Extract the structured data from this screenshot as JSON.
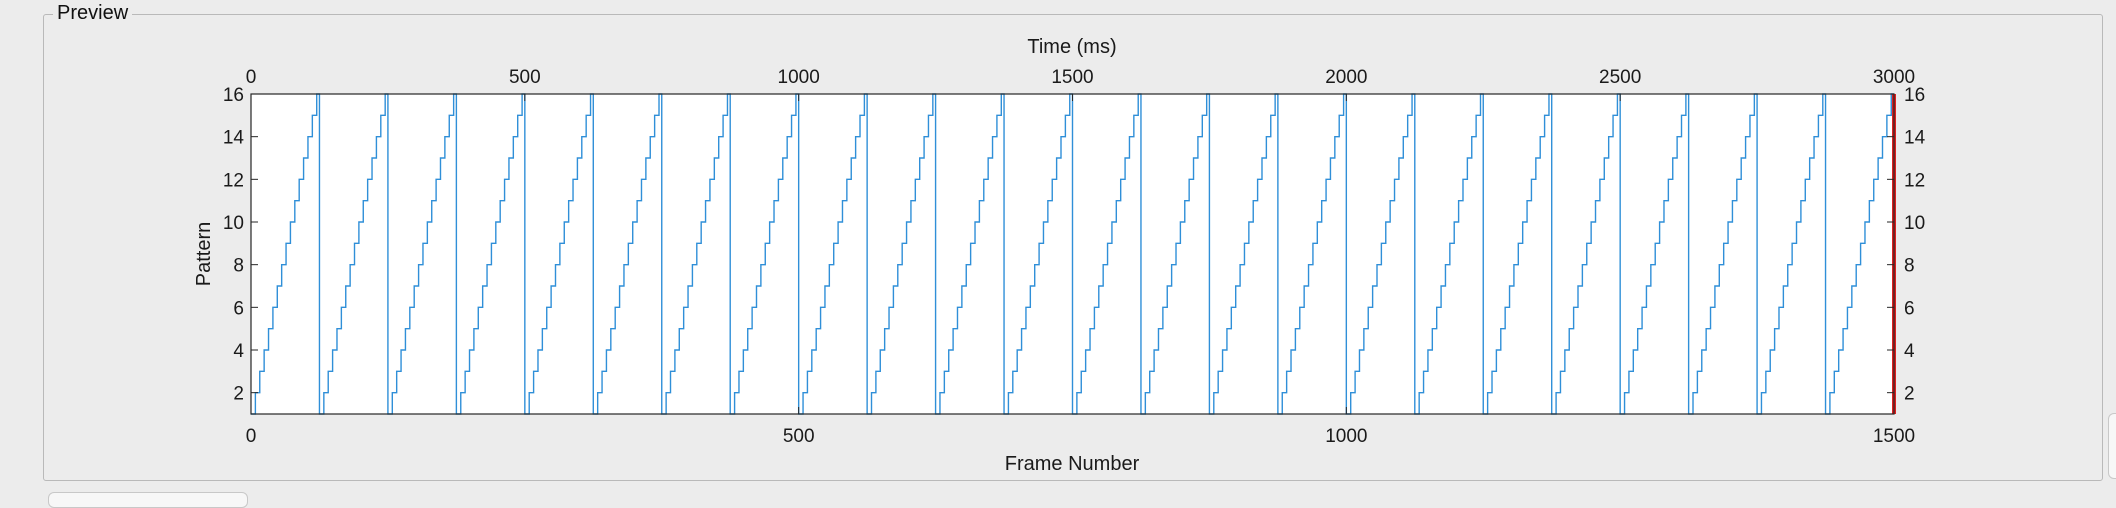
{
  "panel": {
    "title": "Preview"
  },
  "chart_data": {
    "type": "line",
    "xlabel": "Frame Number",
    "ylabel": "Pattern",
    "x2label": "Time (ms)",
    "xlim": [
      0,
      1500
    ],
    "ylim": [
      1,
      16
    ],
    "x2lim": [
      0,
      3000
    ],
    "xticks": [
      0,
      500,
      1000,
      1500
    ],
    "yticks": [
      2,
      4,
      6,
      8,
      10,
      12,
      14,
      16
    ],
    "x2ticks": [
      0,
      500,
      1000,
      1500,
      2000,
      2500,
      3000
    ],
    "series": [
      {
        "color": "#2f8fd8",
        "pattern_min": 1,
        "pattern_max": 16,
        "frames_per_pattern": 4,
        "cycle_length_frames": 62.5,
        "cycles": 24
      }
    ],
    "marker": {
      "frame": 1500,
      "color": "#e02020"
    },
    "grid": false
  }
}
